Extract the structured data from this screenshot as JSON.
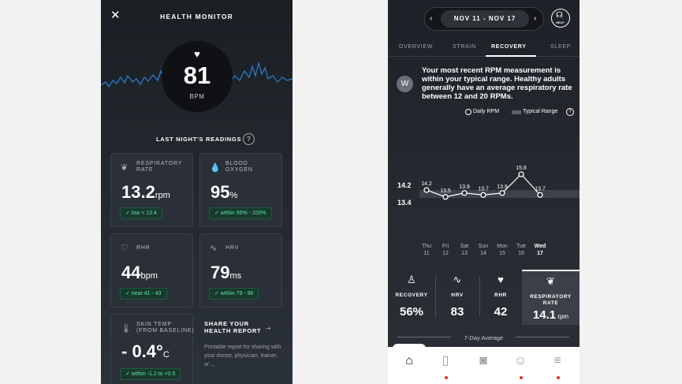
{
  "left": {
    "title": "HEALTH MONITOR",
    "bpm": "81",
    "bpm_unit": "BPM",
    "readings_title": "LAST NIGHT'S READINGS",
    "cards": [
      {
        "label": "RESPIRATORY\nRATE",
        "value": "13.2",
        "unit": "rpm",
        "badge": "✓ low < 13.4",
        "icon": "lungs-icon"
      },
      {
        "label": "BLOOD\nOXYGEN",
        "value": "95",
        "unit": "%",
        "badge": "✓ within 95% - 100%",
        "icon": "drop-icon"
      },
      {
        "label": "RHR",
        "value": "44",
        "unit": "bpm",
        "badge": "✓ near 41 - 43",
        "icon": "heart-outline-icon"
      },
      {
        "label": "HRV",
        "value": "79",
        "unit": "ms",
        "badge": "✓ within 79 - 96",
        "icon": "pulse-icon"
      },
      {
        "label": "SKIN TEMP\n(FROM BASELINE)",
        "value": "- 0.4°",
        "unit": "C",
        "badge": "✓ within -1.2 to +0.5",
        "icon": "thermometer-icon"
      }
    ],
    "share": {
      "title": "SHARE YOUR\nHEALTH REPORT",
      "desc": "Printable report for sharing with your doctor, physician, trainer, or ..."
    }
  },
  "right": {
    "date_range": "NOV 11 - NOV 17",
    "help_label": "HELP",
    "tabs": [
      "OVERVIEW",
      "STRAIN",
      "RECOVERY",
      "SLEEP"
    ],
    "active_tab": "RECOVERY",
    "message": "Your most recent RPM measurement is within your typical range. Healthy adults generally have an average respiratory rate between 12 and 20 RPMs.",
    "legend_daily": "Daily RPM",
    "legend_typical": "Typical Range",
    "metrics": [
      {
        "label": "RECOVERY",
        "value": "56%",
        "unit": "",
        "icon": "meditation-icon"
      },
      {
        "label": "HRV",
        "value": "83",
        "unit": "",
        "icon": "pulse-icon"
      },
      {
        "label": "RHR",
        "value": "42",
        "unit": "",
        "icon": "heart-rate-icon"
      },
      {
        "label": "RESPIRATORY\nRATE",
        "value": "14.1",
        "unit": " rpm",
        "icon": "lungs-icon"
      }
    ],
    "avg_label": "7-Day Average",
    "nav": [
      "home-icon",
      "journal-icon",
      "camera-icon",
      "community-icon",
      "menu-icon"
    ]
  },
  "chart_data": {
    "type": "line",
    "categories": [
      "Thu 11",
      "Fri 12",
      "Sat 13",
      "Sun 14",
      "Mon 15",
      "Tue 16",
      "Wed 17"
    ],
    "days": [
      "Thu",
      "Fri",
      "Sat",
      "Sun",
      "Mon",
      "Tue",
      "Wed"
    ],
    "dates": [
      "11",
      "12",
      "13",
      "14",
      "15",
      "16",
      "17"
    ],
    "series": [
      {
        "name": "Daily RPM",
        "values": [
          14.2,
          13.5,
          13.9,
          13.7,
          13.9,
          15.8,
          13.7
        ]
      }
    ],
    "typical_range": [
      13.4,
      14.2
    ],
    "range_labels": [
      "14.2",
      "13.4"
    ],
    "point_labels": [
      "14.2",
      "13.5",
      "13.9",
      "13.7",
      "13.9",
      "15.8",
      "13.7"
    ],
    "highlight_day": "Wed 17"
  },
  "colors": {
    "accent_green": "#5fe3a5",
    "nav_dot": "#e0322b"
  }
}
